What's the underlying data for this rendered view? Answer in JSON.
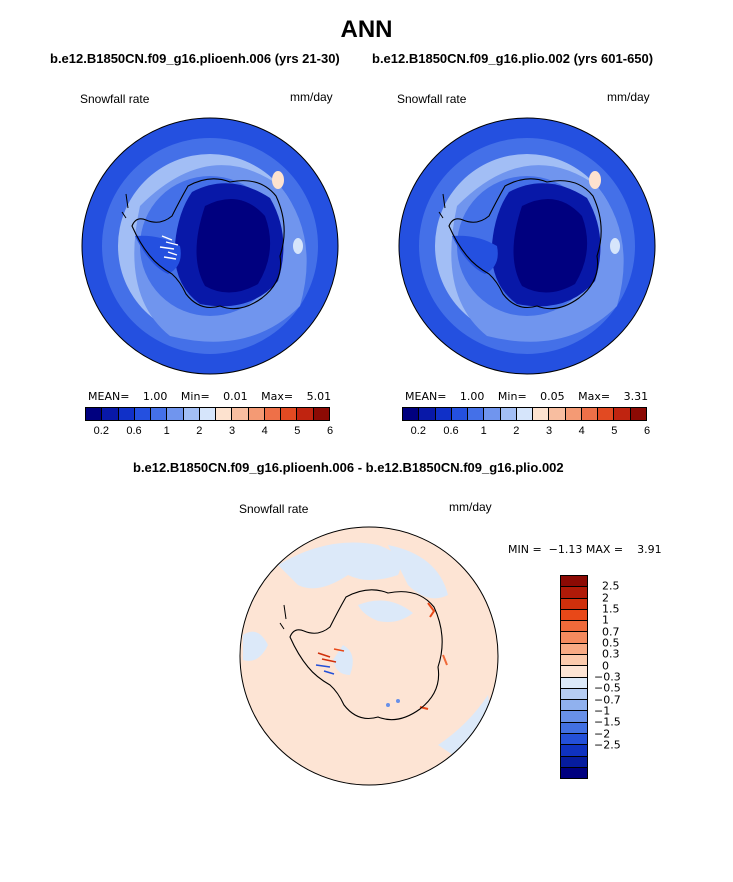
{
  "title": "ANN",
  "panels": [
    {
      "subtitle": "b.e12.B1850CN.f09_g16.plioenh.006 (yrs 21-30)",
      "left_label": "Snowfall rate",
      "right_label": "mm/day",
      "mean_label": "MEAN=",
      "mean_value": "1.00",
      "min_label": "Min=",
      "min_value": "0.01",
      "max_label": "Max=",
      "max_value": "5.01"
    },
    {
      "subtitle": "b.e12.B1850CN.f09_g16.plio.002 (yrs 601-650)",
      "left_label": "Snowfall rate",
      "right_label": "mm/day",
      "mean_label": "MEAN=",
      "mean_value": "1.00",
      "min_label": "Min=",
      "min_value": "0.05",
      "max_label": "Max=",
      "max_value": "3.31"
    }
  ],
  "abs_colorbar": {
    "colors": [
      "#00007f",
      "#0818a8",
      "#1030c8",
      "#2450e0",
      "#4470e8",
      "#7095ee",
      "#a2bef5",
      "#d6e5fb",
      "#fde2cf",
      "#f8bea0",
      "#f49a74",
      "#ee7048",
      "#e24a22",
      "#c02410",
      "#8c0a04"
    ],
    "tick_labels": [
      "0.2",
      "0.6",
      "1",
      "2",
      "3",
      "4",
      "5",
      "6"
    ]
  },
  "diff": {
    "subtitle": "b.e12.B1850CN.f09_g16.plioenh.006 - b.e12.B1850CN.f09_g16.plio.002",
    "left_label": "Snowfall rate",
    "right_label": "mm/day",
    "stats": "MIN =  −1.13 MAX =    3.91",
    "colorbar": {
      "colors": [
        "#8c0a04",
        "#b01a08",
        "#d0300c",
        "#e84818",
        "#f06a3a",
        "#f48a5e",
        "#f8aa84",
        "#fccaac",
        "#fde4d4",
        "#dce9f9",
        "#b6cdf3",
        "#90b1ee",
        "#6890e8",
        "#4270e2",
        "#2450d8",
        "#0f32c0",
        "#061c9e",
        "#00007f"
      ],
      "tick_labels": [
        "2.5",
        "2",
        "1.5",
        "1",
        "0.7",
        "0.5",
        "0.3",
        "0",
        "−0.3",
        "−0.5",
        "−0.7",
        "−1",
        "−1.5",
        "−2",
        "−2.5"
      ]
    }
  }
}
